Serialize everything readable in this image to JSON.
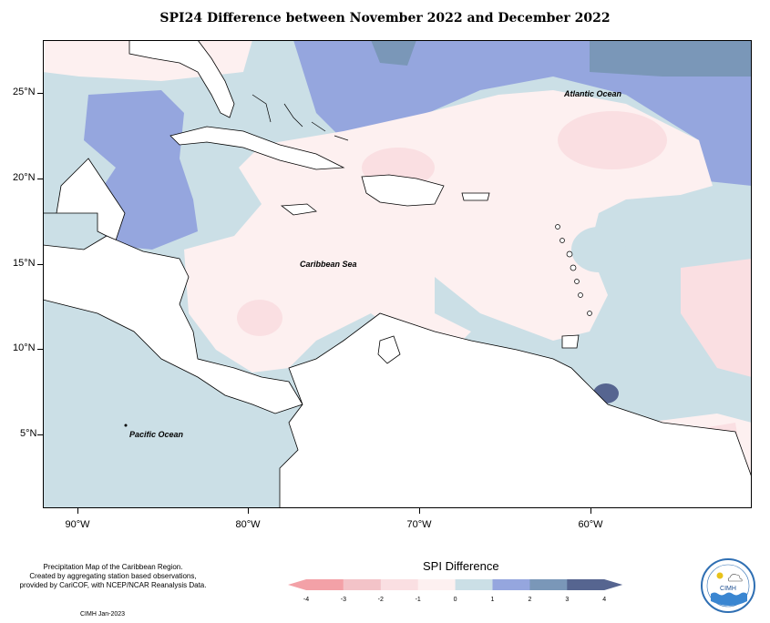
{
  "title": "SPI24 Difference between November 2022 and December 2022",
  "map": {
    "labels": {
      "atlantic": "Atlantic Ocean",
      "caribbean": "Caribbean Sea",
      "pacific": "Pacific Ocean"
    },
    "lat_labels": [
      "25°N",
      "20°N",
      "15°N",
      "10°N",
      "5°N"
    ],
    "lon_labels": [
      "90°W",
      "80°W",
      "70°W",
      "60°W"
    ]
  },
  "legend": {
    "title": "SPI Difference",
    "ticks": [
      "-4",
      "-3",
      "-2",
      "-1",
      "0",
      "1",
      "2",
      "3",
      "4"
    ],
    "colors": [
      "#f3a1a7",
      "#f3c3c8",
      "#fadfe2",
      "#fdf0f0",
      "#cbdfe6",
      "#95a6de",
      "#7a97b8",
      "#566590"
    ]
  },
  "credit": {
    "line1": "Precipitation Map of the Caribbean Region.",
    "line2": "Created by aggregating station based observations,",
    "line3": "provided by CariCOF, with NCEP/NCAR Reanalysis Data.",
    "date": "CIMH Jan-2023"
  },
  "logo": {
    "name": "CIMH"
  }
}
